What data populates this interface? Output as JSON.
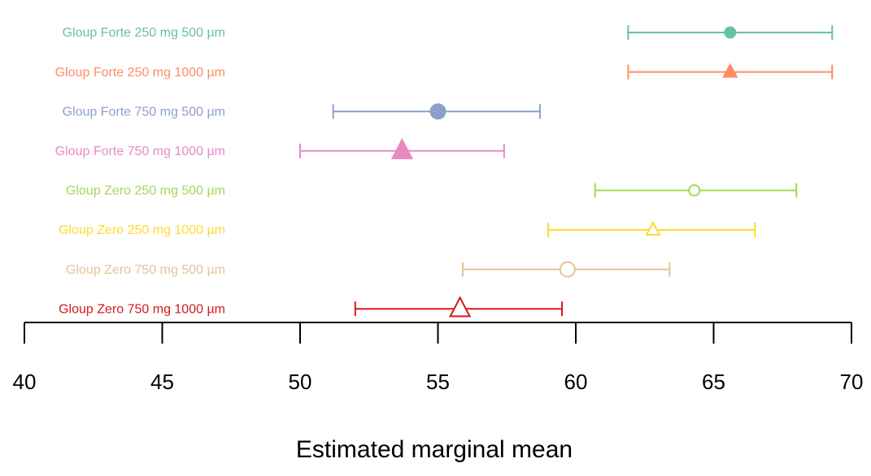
{
  "chart_data": {
    "type": "forest-plot",
    "xlabel": "Estimated marginal mean",
    "xlim": [
      40,
      70
    ],
    "xticks": [
      40,
      45,
      50,
      55,
      60,
      65,
      70
    ],
    "tick_labels": [
      "40",
      "45",
      "50",
      "55",
      "60",
      "65",
      "70"
    ],
    "grid": false,
    "series": [
      {
        "label": "Gloup Forte 250 mg 500 µm",
        "mean": 65.6,
        "lower": 61.9,
        "upper": 69.3,
        "color": "#66C2A5",
        "marker": "circle",
        "filled": true,
        "size": "small"
      },
      {
        "label": "Gloup Forte 250 mg 1000 µm",
        "mean": 65.6,
        "lower": 61.9,
        "upper": 69.3,
        "color": "#FC8D62",
        "marker": "triangle",
        "filled": true,
        "size": "small"
      },
      {
        "label": "Gloup Forte 750 mg 500 µm",
        "mean": 55.0,
        "lower": 51.2,
        "upper": 58.7,
        "color": "#8DA0CB",
        "marker": "circle",
        "filled": true,
        "size": "large"
      },
      {
        "label": "Gloup Forte 750 mg 1000 µm",
        "mean": 53.7,
        "lower": 50.0,
        "upper": 57.4,
        "color": "#E78AC3",
        "marker": "triangle",
        "filled": true,
        "size": "large"
      },
      {
        "label": "Gloup Zero 250 mg 500 µm",
        "mean": 64.3,
        "lower": 60.7,
        "upper": 68.0,
        "color": "#A6D854",
        "marker": "circle",
        "filled": false,
        "size": "small"
      },
      {
        "label": "Gloup Zero 250 mg 1000 µm",
        "mean": 62.8,
        "lower": 59.0,
        "upper": 66.5,
        "color": "#FFD92F",
        "marker": "triangle",
        "filled": false,
        "size": "small"
      },
      {
        "label": "Gloup Zero 750 mg 500 µm",
        "mean": 59.7,
        "lower": 55.9,
        "upper": 63.4,
        "color": "#E5C494",
        "marker": "circle",
        "filled": false,
        "size": "large"
      },
      {
        "label": "Gloup Zero 750 mg 1000 µm",
        "mean": 55.8,
        "lower": 52.0,
        "upper": 59.5,
        "color": "#D7191C",
        "marker": "triangle",
        "filled": false,
        "size": "large"
      }
    ]
  }
}
